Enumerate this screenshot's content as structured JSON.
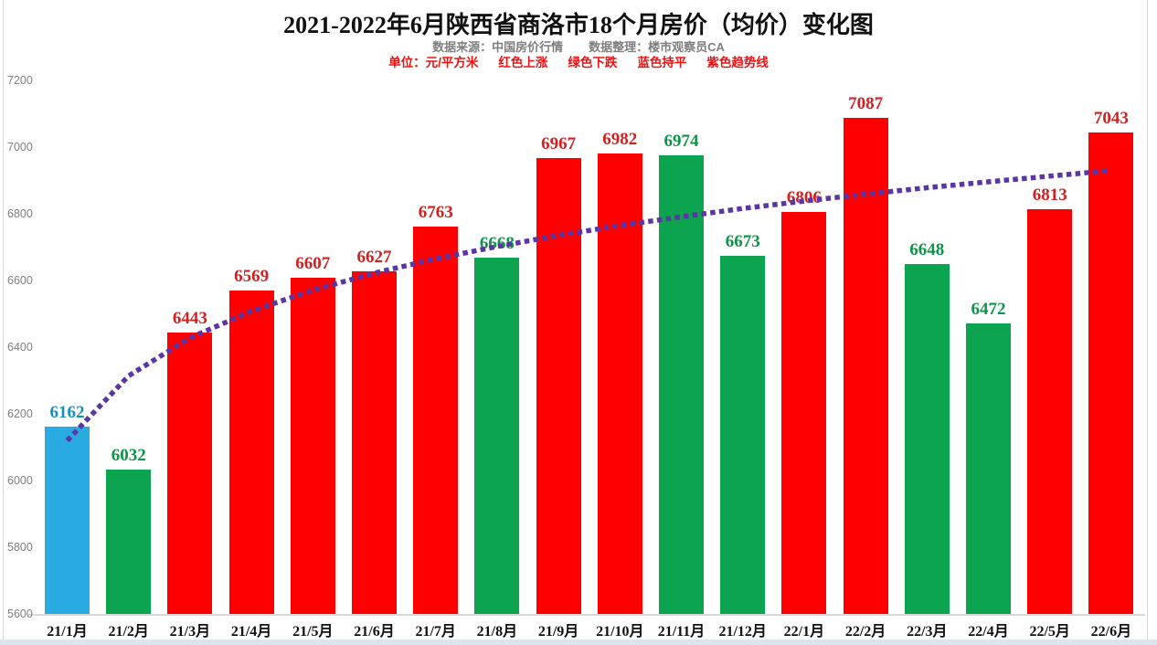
{
  "header": {
    "title": "2021-2022年6月陕西省商洛市18个月房价（均价）变化图",
    "source": "数据来源：中国房价行情",
    "editor": "数据整理：楼市观察员CA",
    "unit_label": "单位：元/平方米",
    "legend_up": "红色上涨",
    "legend_down": "绿色下跌",
    "legend_flat": "蓝色持平",
    "legend_trend": "紫色趋势线"
  },
  "chart_data": {
    "type": "bar",
    "title": "2021-2022年6月陕西省商洛市18个月房价（均价）变化图",
    "unit": "元/平方米",
    "categories": [
      "21/1月",
      "21/2月",
      "21/3月",
      "21/4月",
      "21/5月",
      "21/6月",
      "21/7月",
      "21/8月",
      "21/9月",
      "21/10月",
      "21/11月",
      "21/12月",
      "22/1月",
      "22/2月",
      "22/3月",
      "22/4月",
      "22/5月",
      "22/6月"
    ],
    "values": [
      6162,
      6032,
      6443,
      6569,
      6607,
      6627,
      6763,
      6668,
      6967,
      6982,
      6974,
      6673,
      6806,
      7087,
      6648,
      6472,
      6813,
      7043
    ],
    "statuses": [
      "flat",
      "down",
      "up",
      "up",
      "up",
      "up",
      "up",
      "down",
      "up",
      "up",
      "down",
      "down",
      "up",
      "up",
      "down",
      "down",
      "up",
      "up"
    ],
    "trend_series": {
      "name": "趋势线",
      "style": "dotted",
      "values": [
        6120,
        6314,
        6428,
        6508,
        6571,
        6622,
        6665,
        6702,
        6735,
        6765,
        6791,
        6816,
        6838,
        6859,
        6878,
        6896,
        6913,
        6930
      ]
    },
    "y_ticks": [
      5600,
      5800,
      6000,
      6200,
      6400,
      6600,
      6800,
      7000,
      7200
    ],
    "ylim": [
      5600,
      7200
    ],
    "grid": false,
    "legend_position": "subtitle-text"
  },
  "colors": {
    "bar_up": "#fe0000",
    "bar_down": "#0ca44e",
    "bar_flat": "#29abe2",
    "label_up": "#d02020",
    "label_down": "#0e9448",
    "label_flat": "#1590be",
    "trend": "#5c35a4",
    "axis_text": "#7f7f7f",
    "baseline": "#d9d9d9",
    "subtitle_gray": "#7e7e7e",
    "subtitle_red": "#ee1111"
  }
}
